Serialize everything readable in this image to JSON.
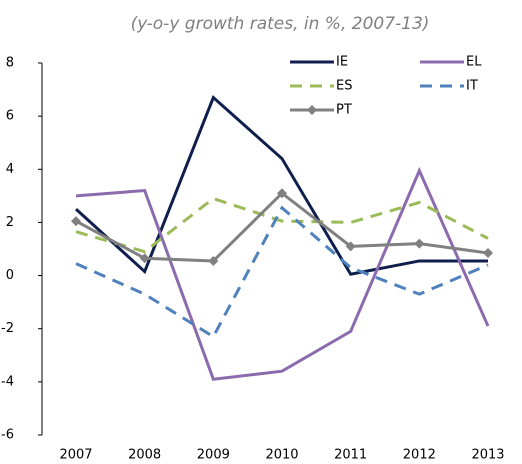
{
  "chart_data": {
    "type": "line",
    "title": "(y-o-y growth rates, in %, 2007-13)",
    "categories": [
      "2007",
      "2008",
      "2009",
      "2010",
      "2011",
      "2012",
      "2013"
    ],
    "series": [
      {
        "name": "IE",
        "color": "#0f1f4d",
        "linestyle": "solid",
        "values": [
          2.5,
          0.15,
          6.7,
          4.4,
          0.05,
          0.55,
          0.55
        ]
      },
      {
        "name": "EL",
        "color": "#8b6bae",
        "linestyle": "solid",
        "values": [
          3.0,
          3.2,
          -3.9,
          -3.6,
          -2.1,
          3.95,
          -1.9
        ]
      },
      {
        "name": "ES",
        "color": "#9bbb59",
        "linestyle": "dashed",
        "values": [
          1.65,
          0.9,
          2.9,
          2.05,
          2.0,
          2.75,
          1.4
        ]
      },
      {
        "name": "IT",
        "color": "#4f81bd",
        "linestyle": "dashed",
        "values": [
          0.45,
          -0.7,
          -2.3,
          2.55,
          0.3,
          -0.7,
          0.4
        ]
      },
      {
        "name": "PT",
        "color": "#808080",
        "linestyle": "solid",
        "marker": "diamond",
        "values": [
          2.05,
          0.65,
          0.55,
          3.1,
          1.1,
          1.2,
          0.85
        ]
      }
    ],
    "ylim": [
      -6,
      8
    ],
    "yticks": [
      -6,
      -4,
      -2,
      0,
      2,
      4,
      6,
      8
    ],
    "grid": false,
    "legend": "upper right"
  }
}
